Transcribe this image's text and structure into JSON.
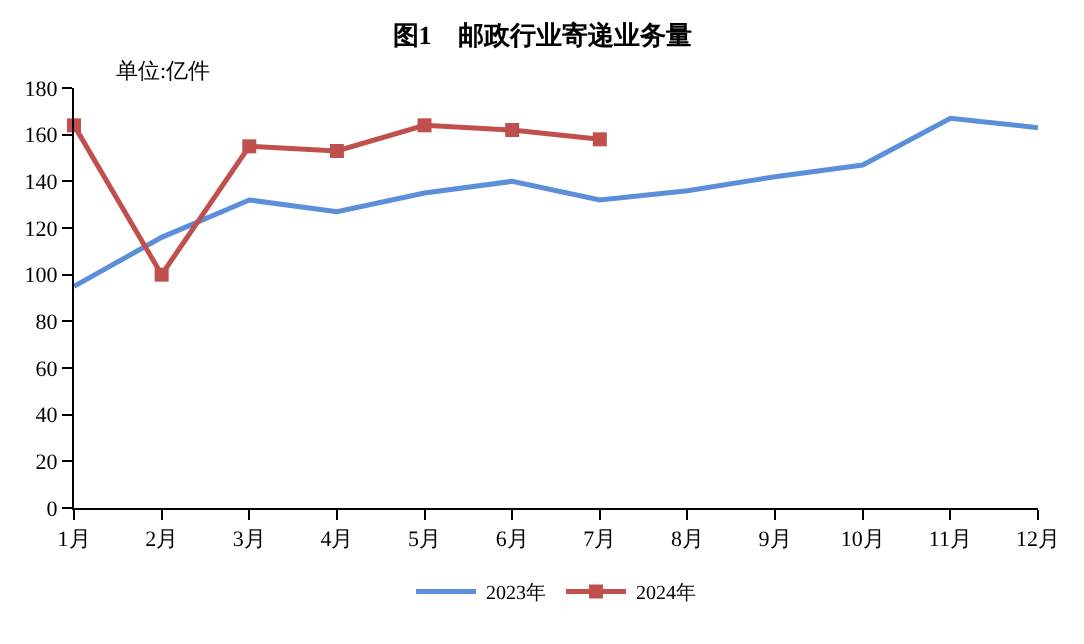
{
  "chart_data": {
    "type": "line",
    "title": "图1　邮政行业寄递业务量",
    "ylabel": "单位:亿件",
    "categories": [
      "1月",
      "2月",
      "3月",
      "4月",
      "5月",
      "6月",
      "7月",
      "8月",
      "9月",
      "10月",
      "11月",
      "12月"
    ],
    "series": [
      {
        "name": "2023年",
        "color": "#5b8fd9",
        "marker": "none",
        "values": [
          95,
          116,
          132,
          127,
          135,
          140,
          132,
          136,
          142,
          147,
          167,
          163
        ]
      },
      {
        "name": "2024年",
        "color": "#c0504d",
        "marker": "square",
        "values": [
          164,
          100,
          155,
          153,
          164,
          162,
          158,
          null,
          null,
          null,
          null,
          null
        ]
      }
    ],
    "ylim": [
      0,
      180
    ],
    "yticks": [
      0,
      20,
      40,
      60,
      80,
      100,
      120,
      140,
      160,
      180
    ],
    "legend": "bottom"
  }
}
